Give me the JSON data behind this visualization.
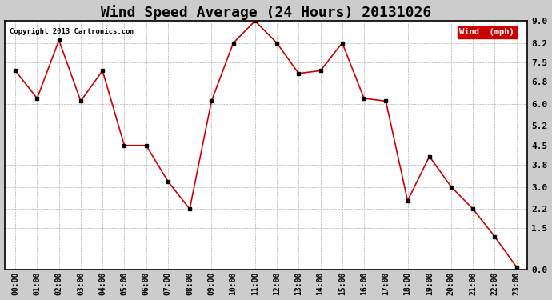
{
  "title": "Wind Speed Average (24 Hours) 20131026",
  "copyright": "Copyright 2013 Cartronics.com",
  "legend_label": "Wind  (mph)",
  "x_labels": [
    "00:00",
    "01:00",
    "02:00",
    "03:00",
    "04:00",
    "05:00",
    "06:00",
    "07:00",
    "08:00",
    "09:00",
    "10:00",
    "11:00",
    "12:00",
    "13:00",
    "14:00",
    "15:00",
    "16:00",
    "17:00",
    "18:00",
    "19:00",
    "20:00",
    "21:00",
    "22:00",
    "23:00"
  ],
  "wind_values": [
    7.2,
    6.2,
    8.3,
    6.1,
    7.2,
    4.5,
    4.5,
    3.2,
    2.2,
    6.1,
    8.2,
    9.0,
    8.2,
    7.1,
    7.2,
    8.2,
    6.2,
    6.1,
    2.5,
    4.1,
    3.0,
    2.2,
    1.2,
    0.1
  ],
  "line_color": "#cc0000",
  "marker_color": "#000000",
  "bg_color": "#ffffff",
  "fig_bg_color": "#cccccc",
  "grid_color": "#aaaaaa",
  "ylim": [
    0.0,
    9.0
  ],
  "yticks": [
    0.0,
    1.5,
    2.2,
    3.0,
    3.8,
    4.5,
    5.2,
    6.0,
    6.8,
    7.5,
    8.2,
    9.0
  ],
  "title_fontsize": 13,
  "legend_bg": "#cc0000",
  "legend_text_color": "#ffffff",
  "border_color": "#000000"
}
